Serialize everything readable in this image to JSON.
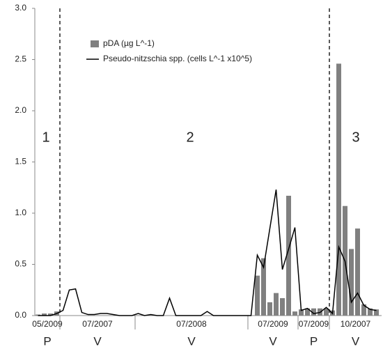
{
  "chart_data": {
    "type": "bar-line",
    "categories": [
      null,
      null,
      null,
      null,
      null,
      null,
      null,
      null,
      null,
      null,
      null,
      null,
      null,
      null,
      null,
      null,
      null,
      null,
      null,
      null,
      null,
      null,
      null,
      null,
      null,
      null,
      null,
      null,
      null,
      null,
      null,
      null,
      null,
      null,
      null,
      null,
      null,
      null,
      null,
      null,
      null,
      null,
      null,
      null,
      null,
      null,
      null,
      null,
      null,
      null,
      null,
      null,
      null,
      null,
      null
    ],
    "series": [
      {
        "name": "pDA (µg L^-1)",
        "type": "bar",
        "color": "#808080",
        "values": [
          0.01,
          0.02,
          0.02,
          0.04,
          null,
          null,
          null,
          null,
          null,
          null,
          null,
          null,
          null,
          null,
          null,
          null,
          null,
          null,
          null,
          null,
          null,
          null,
          null,
          null,
          null,
          null,
          null,
          null,
          null,
          null,
          null,
          null,
          null,
          null,
          null,
          0.39,
          0.56,
          0.13,
          0.22,
          0.17,
          1.17,
          0.04,
          0.06,
          0.07,
          0.07,
          0.07,
          0.07,
          0.05,
          2.46,
          1.07,
          0.65,
          0.85,
          0.11,
          0.07,
          0.06
        ]
      },
      {
        "name": "Pseudo-nitzschia spp. (cells L^-1 x10^5)",
        "type": "line",
        "color": "#000000",
        "values": [
          0.0,
          0.0,
          0.0,
          0.02,
          0.05,
          0.25,
          0.26,
          0.03,
          0.01,
          0.01,
          0.02,
          0.02,
          0.01,
          0.0,
          0.0,
          0.0,
          0.02,
          0.0,
          0.01,
          0.0,
          0.0,
          0.17,
          0.0,
          0.0,
          0.0,
          0.0,
          0.0,
          0.04,
          0.0,
          0.0,
          0.0,
          0.0,
          0.0,
          0.0,
          0.0,
          0.59,
          0.47,
          0.85,
          1.23,
          0.45,
          0.65,
          0.86,
          0.05,
          0.07,
          0.02,
          0.03,
          0.08,
          0.02,
          0.67,
          0.53,
          0.13,
          0.22,
          0.1,
          0.06,
          0.05
        ]
      }
    ],
    "groups": [
      {
        "label": "05/2009",
        "sublabel": "P",
        "start": 0,
        "end": 3
      },
      {
        "label": "07/2007",
        "sublabel": "V",
        "start": 4,
        "end": 15
      },
      {
        "label": "07/2008",
        "sublabel": "V",
        "start": 16,
        "end": 33
      },
      {
        "label": "07/2009",
        "sublabel": "V",
        "start": 34,
        "end": 41
      },
      {
        "label": "07/2009",
        "sublabel": "P",
        "start": 42,
        "end": 46
      },
      {
        "label": "10/2007",
        "sublabel": "V",
        "start": 47,
        "end": 54
      }
    ],
    "annotations": [
      "1",
      "2",
      "3"
    ],
    "ylim": [
      0,
      3
    ],
    "yticks": [
      {
        "value": 0,
        "label": "0.0"
      },
      {
        "value": 0.5,
        "label": "0.5"
      },
      {
        "value": 1,
        "label": "1.0"
      },
      {
        "value": 1.5,
        "label": "1.5"
      },
      {
        "value": 2,
        "label": "2.0"
      },
      {
        "value": 2.5,
        "label": "2.5"
      },
      {
        "value": 3,
        "label": "3.0"
      }
    ],
    "grid": false
  }
}
